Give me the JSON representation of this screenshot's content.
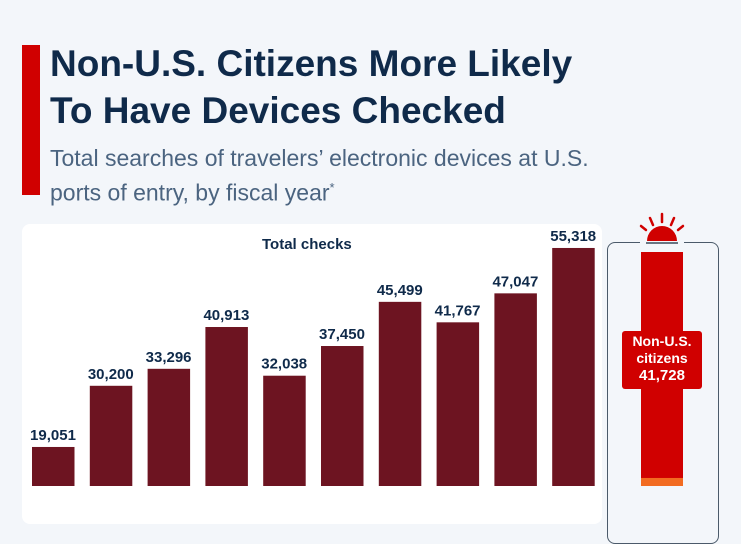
{
  "header": {
    "title_line1": "Non-U.S. Citizens More Likely",
    "title_line2": "To Have Devices Checked",
    "subtitle_line1": "Total searches of travelers’ electronic devices at U.S.",
    "subtitle_line2": "ports of entry, by fiscal year",
    "subtitle_footnote_mark": "*"
  },
  "chart_data": {
    "type": "bar",
    "series": [
      {
        "name": "Total checks",
        "values": [
          19051,
          30200,
          33296,
          40913,
          32038,
          37450,
          45499,
          41767,
          47047,
          55318
        ]
      }
    ],
    "data_labels": [
      "19,051",
      "30,200",
      "33,296",
      "40,913",
      "32,038",
      "37,450",
      "45,499",
      "41,767",
      "47,047",
      "55,318"
    ],
    "colors": {
      "bars": "#6d1421",
      "highlight": "#d00000",
      "secondary": "#f26b21",
      "accent": "#d00000"
    },
    "highlight": {
      "label_line1": "Non-U.S.",
      "label_line2": "citizens",
      "value_label": "41,728",
      "value": 41728,
      "total": 55318
    },
    "grid": false
  }
}
